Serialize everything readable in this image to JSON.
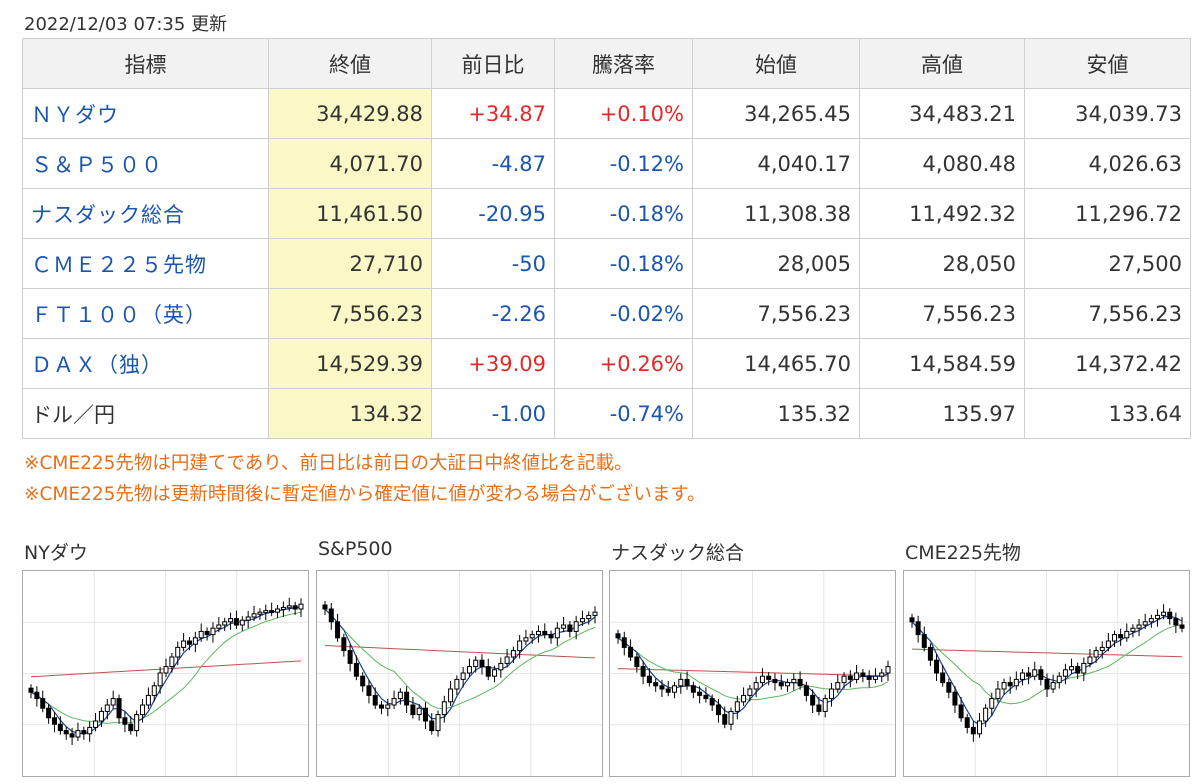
{
  "updated": "2022/12/03 07:35 更新",
  "table": {
    "headers": [
      "指標",
      "終値",
      "前日比",
      "騰落率",
      "始値",
      "高値",
      "安値"
    ],
    "rows": [
      {
        "name": "ＮＹダウ",
        "link": true,
        "close": "34,429.88",
        "change": "+34.87",
        "pct": "+0.10%",
        "dir": "up",
        "open": "34,265.45",
        "high": "34,483.21",
        "low": "34,039.73"
      },
      {
        "name": "Ｓ＆Ｐ５００",
        "link": true,
        "close": "4,071.70",
        "change": "-4.87",
        "pct": "-0.12%",
        "dir": "down",
        "open": "4,040.17",
        "high": "4,080.48",
        "low": "4,026.63"
      },
      {
        "name": "ナスダック総合",
        "link": true,
        "close": "11,461.50",
        "change": "-20.95",
        "pct": "-0.18%",
        "dir": "down",
        "open": "11,308.38",
        "high": "11,492.32",
        "low": "11,296.72"
      },
      {
        "name": "ＣＭＥ２２５先物",
        "link": true,
        "close": "27,710",
        "change": "-50",
        "pct": "-0.18%",
        "dir": "down",
        "open": "28,005",
        "high": "28,050",
        "low": "27,500"
      },
      {
        "name": "ＦＴ１００（英）",
        "link": true,
        "close": "7,556.23",
        "change": "-2.26",
        "pct": "-0.02%",
        "dir": "down",
        "open": "7,556.23",
        "high": "7,556.23",
        "low": "7,556.23"
      },
      {
        "name": "ＤＡＸ（独）",
        "link": true,
        "close": "14,529.39",
        "change": "+39.09",
        "pct": "+0.26%",
        "dir": "up",
        "open": "14,465.70",
        "high": "14,584.59",
        "low": "14,372.42"
      },
      {
        "name": "ドル／円",
        "link": false,
        "close": "134.32",
        "change": "-1.00",
        "pct": "-0.74%",
        "dir": "down",
        "open": "135.32",
        "high": "135.97",
        "low": "133.64"
      }
    ]
  },
  "notes": [
    "※CME225先物は円建てであり、前日比は前日の大証日中終値比を記載。",
    "※CME225先物は更新時間後に暫定値から確定値に値が変わる場合がございます。"
  ],
  "colors": {
    "up": "#e22a2a",
    "down": "#1a56b0",
    "note": "#e86f1a",
    "highlight": "#fbf8c8",
    "ma_short": "#1f3f8f",
    "ma_mid": "#5cb85c",
    "ma_long": "#c0504d"
  },
  "chart_data": [
    {
      "type": "candlestick",
      "title": "NYダウ",
      "shape": [
        0.62,
        0.66,
        0.72,
        0.78,
        0.82,
        0.86,
        0.88,
        0.9,
        0.86,
        0.88,
        0.84,
        0.8,
        0.74,
        0.7,
        0.66,
        0.78,
        0.82,
        0.86,
        0.76,
        0.7,
        0.64,
        0.58,
        0.5,
        0.46,
        0.4,
        0.34,
        0.3,
        0.32,
        0.28,
        0.24,
        0.26,
        0.22,
        0.2,
        0.18,
        0.16,
        0.2,
        0.17,
        0.15,
        0.13,
        0.12,
        0.11,
        0.12,
        0.1,
        0.09,
        0.08,
        0.1,
        0.07
      ]
    },
    {
      "type": "candlestick",
      "title": "S&P500",
      "shape": [
        0.1,
        0.18,
        0.28,
        0.36,
        0.44,
        0.52,
        0.58,
        0.64,
        0.7,
        0.72,
        0.7,
        0.66,
        0.62,
        0.7,
        0.76,
        0.72,
        0.8,
        0.86,
        0.76,
        0.68,
        0.6,
        0.54,
        0.5,
        0.46,
        0.42,
        0.46,
        0.52,
        0.48,
        0.44,
        0.4,
        0.36,
        0.3,
        0.28,
        0.26,
        0.24,
        0.26,
        0.28,
        0.22,
        0.2,
        0.24,
        0.18,
        0.16,
        0.14,
        0.12
      ]
    },
    {
      "type": "candlestick",
      "title": "ナスダック総合",
      "shape": [
        0.28,
        0.34,
        0.4,
        0.46,
        0.52,
        0.56,
        0.58,
        0.6,
        0.62,
        0.58,
        0.54,
        0.58,
        0.62,
        0.64,
        0.66,
        0.7,
        0.76,
        0.82,
        0.74,
        0.68,
        0.64,
        0.6,
        0.56,
        0.52,
        0.54,
        0.56,
        0.58,
        0.56,
        0.54,
        0.58,
        0.64,
        0.7,
        0.74,
        0.66,
        0.6,
        0.56,
        0.52,
        0.54,
        0.5,
        0.52,
        0.54,
        0.52,
        0.5,
        0.46
      ]
    },
    {
      "type": "candlestick",
      "title": "CME225先物",
      "shape": [
        0.18,
        0.26,
        0.34,
        0.42,
        0.5,
        0.56,
        0.62,
        0.7,
        0.78,
        0.84,
        0.88,
        0.8,
        0.72,
        0.66,
        0.6,
        0.56,
        0.58,
        0.54,
        0.5,
        0.52,
        0.48,
        0.54,
        0.6,
        0.56,
        0.52,
        0.48,
        0.46,
        0.5,
        0.44,
        0.4,
        0.36,
        0.34,
        0.3,
        0.26,
        0.28,
        0.24,
        0.22,
        0.2,
        0.18,
        0.16,
        0.14,
        0.12,
        0.16,
        0.2,
        0.22
      ]
    }
  ]
}
